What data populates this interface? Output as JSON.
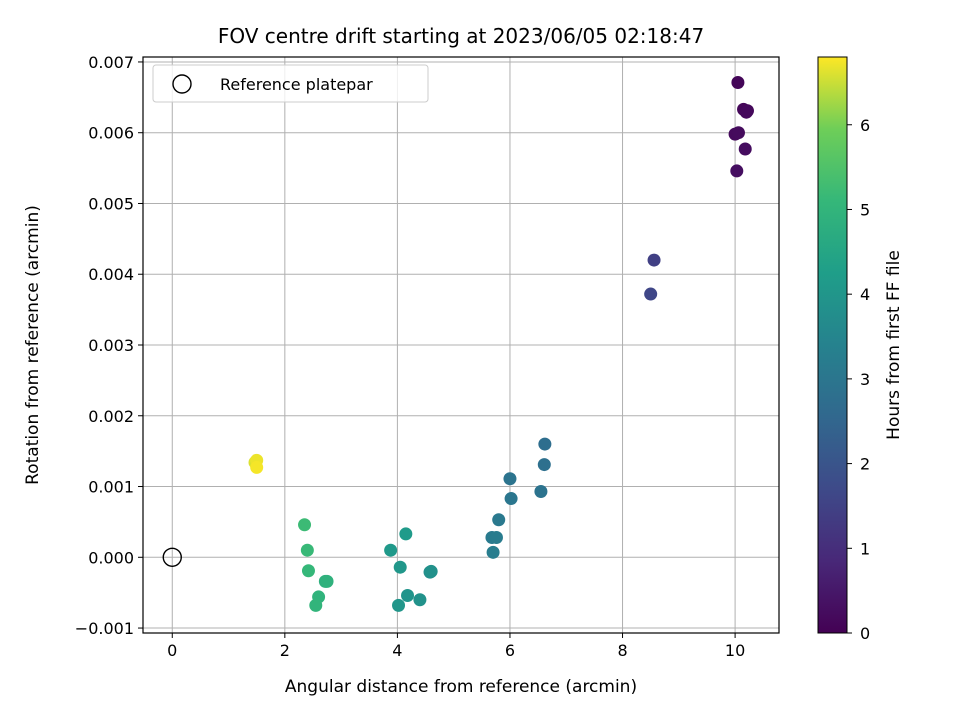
{
  "chart_data": {
    "type": "scatter",
    "title": "FOV centre drift starting at 2023/06/05 02:18:47",
    "xlabel": "Angular distance from reference (arcmin)",
    "ylabel": "Rotation from reference (arcmin)",
    "xlim": [
      -0.52,
      10.78
    ],
    "ylim": [
      -0.00107,
      0.00707
    ],
    "x_ticks": [
      0,
      2,
      4,
      6,
      8,
      10
    ],
    "x_tick_labels": [
      "0",
      "2",
      "4",
      "6",
      "8",
      "10"
    ],
    "y_ticks": [
      -0.001,
      0.0,
      0.001,
      0.002,
      0.003,
      0.004,
      0.005,
      0.006,
      0.007
    ],
    "y_tick_labels": [
      "−0.001",
      "0.000",
      "0.001",
      "0.002",
      "0.003",
      "0.004",
      "0.005",
      "0.006",
      "0.007"
    ],
    "grid": true,
    "legend": {
      "placement": "top-left",
      "entries": [
        "Reference platepar"
      ]
    },
    "reference_point": {
      "x": 0.0,
      "y": 0.0
    },
    "colorbar": {
      "label": "Hours from first FF file",
      "colormap": "viridis",
      "range": [
        0,
        6.8
      ],
      "ticks": [
        0,
        1,
        2,
        3,
        4,
        5,
        6
      ],
      "tick_labels": [
        "0",
        "1",
        "2",
        "3",
        "4",
        "5",
        "6"
      ]
    },
    "points": [
      {
        "x": 10.05,
        "y": 0.00671,
        "c": 0.1
      },
      {
        "x": 10.15,
        "y": 0.00633,
        "c": 0.12
      },
      {
        "x": 10.22,
        "y": 0.00631,
        "c": 0.15
      },
      {
        "x": 10.2,
        "y": 0.00629,
        "c": 0.18
      },
      {
        "x": 10.0,
        "y": 0.00598,
        "c": 0.2
      },
      {
        "x": 10.06,
        "y": 0.006,
        "c": 0.22
      },
      {
        "x": 10.18,
        "y": 0.00577,
        "c": 0.25
      },
      {
        "x": 10.03,
        "y": 0.00546,
        "c": 0.28
      },
      {
        "x": 8.56,
        "y": 0.0042,
        "c": 1.45
      },
      {
        "x": 8.5,
        "y": 0.00372,
        "c": 1.6
      },
      {
        "x": 6.62,
        "y": 0.0016,
        "c": 2.75
      },
      {
        "x": 6.61,
        "y": 0.00131,
        "c": 2.8
      },
      {
        "x": 6.55,
        "y": 0.00093,
        "c": 2.9
      },
      {
        "x": 6.0,
        "y": 0.00111,
        "c": 2.95
      },
      {
        "x": 6.02,
        "y": 0.00083,
        "c": 3.0
      },
      {
        "x": 5.8,
        "y": 0.00053,
        "c": 3.1
      },
      {
        "x": 5.68,
        "y": 0.00028,
        "c": 3.15
      },
      {
        "x": 5.76,
        "y": 0.00028,
        "c": 3.2
      },
      {
        "x": 5.7,
        "y": 7e-05,
        "c": 3.25
      },
      {
        "x": 4.58,
        "y": -0.00021,
        "c": 3.8
      },
      {
        "x": 4.6,
        "y": -0.0002,
        "c": 3.85
      },
      {
        "x": 4.4,
        "y": -0.0006,
        "c": 3.9
      },
      {
        "x": 4.18,
        "y": -0.00054,
        "c": 3.95
      },
      {
        "x": 4.02,
        "y": -0.00068,
        "c": 4.0
      },
      {
        "x": 4.05,
        "y": -0.00014,
        "c": 4.05
      },
      {
        "x": 3.88,
        "y": 0.0001,
        "c": 4.1
      },
      {
        "x": 4.15,
        "y": 0.00033,
        "c": 4.15
      },
      {
        "x": 2.72,
        "y": -0.00034,
        "c": 4.85
      },
      {
        "x": 2.75,
        "y": -0.00034,
        "c": 4.9
      },
      {
        "x": 2.6,
        "y": -0.00056,
        "c": 4.95
      },
      {
        "x": 2.55,
        "y": -0.00068,
        "c": 5.0
      },
      {
        "x": 2.42,
        "y": -0.00019,
        "c": 5.1
      },
      {
        "x": 2.4,
        "y": 0.0001,
        "c": 5.15
      },
      {
        "x": 2.35,
        "y": 0.00046,
        "c": 5.2
      },
      {
        "x": 1.47,
        "y": 0.00134,
        "c": 6.6
      },
      {
        "x": 1.5,
        "y": 0.00137,
        "c": 6.7
      },
      {
        "x": 1.5,
        "y": 0.00127,
        "c": 6.75
      }
    ]
  }
}
